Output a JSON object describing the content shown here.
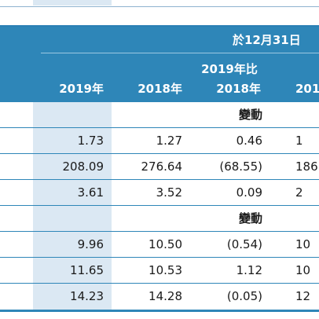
{
  "header": {
    "group_title": "於12月31日",
    "change_title": "2019年比",
    "years": [
      "2019年",
      "2018年",
      "2018年",
      "201"
    ]
  },
  "rows": [
    {
      "type": "section",
      "label": "變動"
    },
    {
      "type": "data",
      "cells": [
        "1.73",
        "1.27",
        "0.46",
        "1"
      ]
    },
    {
      "type": "data",
      "cells": [
        "208.09",
        "276.64",
        "(68.55)",
        "186"
      ]
    },
    {
      "type": "data",
      "cells": [
        "3.61",
        "3.52",
        "0.09",
        "2"
      ]
    },
    {
      "type": "section",
      "label": "變動"
    },
    {
      "type": "data",
      "cells": [
        "9.96",
        "10.50",
        "(0.54)",
        "10"
      ]
    },
    {
      "type": "data",
      "cells": [
        "11.65",
        "10.53",
        "1.12",
        "10"
      ]
    },
    {
      "type": "data",
      "cells": [
        "14.23",
        "14.28",
        "(0.05)",
        "12"
      ]
    }
  ],
  "colors": {
    "header_bg": "#2e86b8",
    "highlight_col": "#dbe8f3",
    "rule": "#2e86b8"
  }
}
